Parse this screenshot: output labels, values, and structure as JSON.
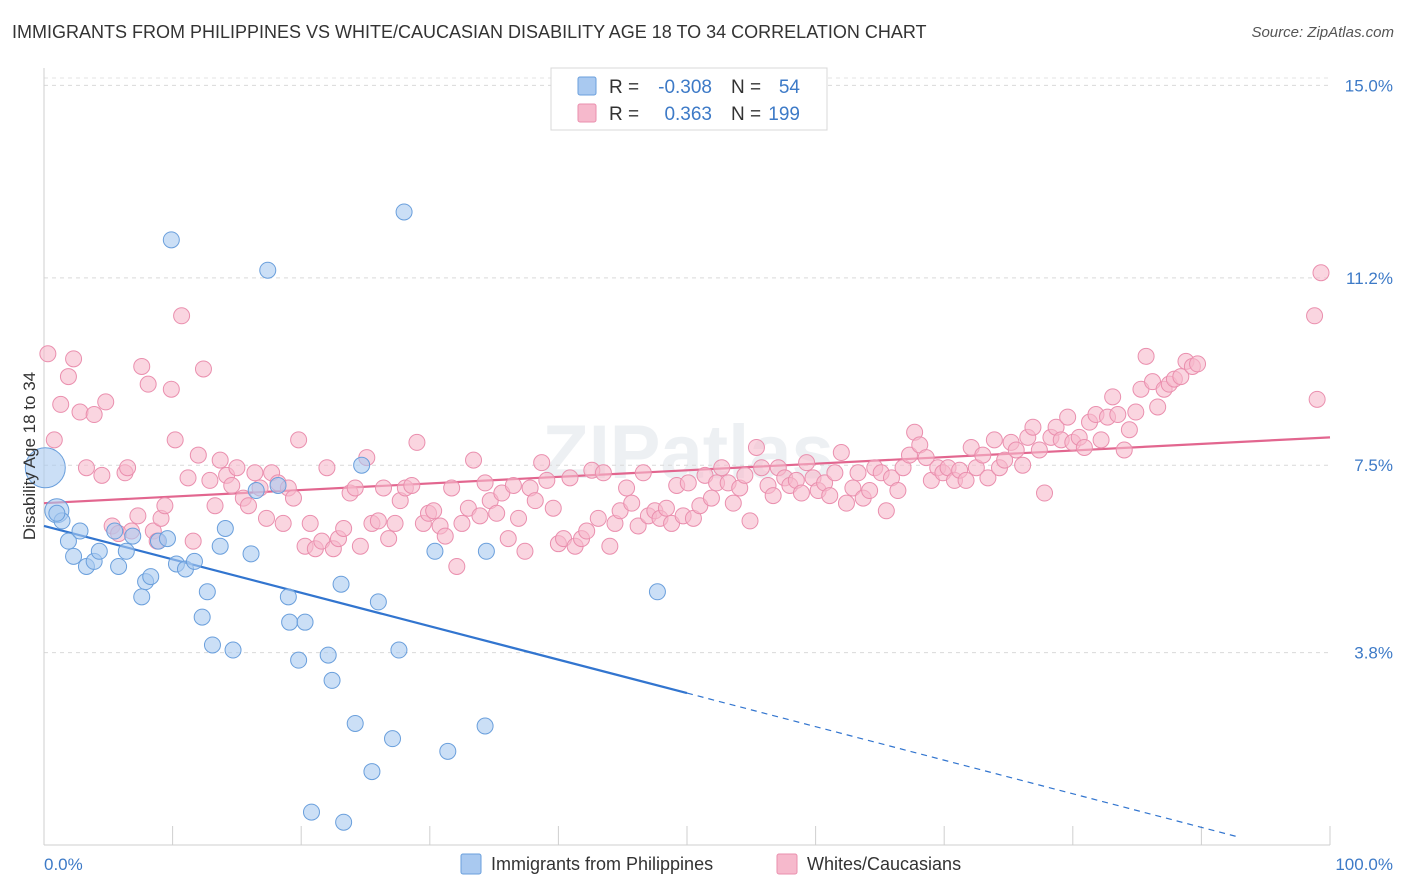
{
  "title": "IMMIGRANTS FROM PHILIPPINES VS WHITE/CAUCASIAN DISABILITY AGE 18 TO 34 CORRELATION CHART",
  "source": "Source: ZipAtlas.com",
  "watermark": "ZIPatlas",
  "legend": {
    "r_label": "R =",
    "n_label": "N =",
    "rows": [
      {
        "r": "-0.308",
        "n": "54"
      },
      {
        "r": "0.363",
        "n": "199"
      }
    ]
  },
  "colors": {
    "blue_fill": "#a9c9f0",
    "blue_stroke": "#6a9fdc",
    "blue_line": "#3275cf",
    "pink_fill": "#f6b9cc",
    "pink_stroke": "#ea8fae",
    "pink_line": "#e2668f",
    "tick_text": "#3d7ac7"
  },
  "chart_data": {
    "type": "scatter",
    "title": "IMMIGRANTS FROM PHILIPPINES VS WHITE/CAUCASIAN DISABILITY AGE 18 TO 34 CORRELATION CHART",
    "xlabel": "",
    "ylabel": "Disability Age 18 to 34",
    "xlim": [
      0,
      100
    ],
    "ylim": [
      0,
      15.6
    ],
    "x_ticks": [
      "0.0%",
      "100.0%"
    ],
    "y_ticks": [
      {
        "value": 3.8,
        "label": "3.8%"
      },
      {
        "value": 7.5,
        "label": "7.5%"
      },
      {
        "value": 11.2,
        "label": "11.2%"
      },
      {
        "value": 15.0,
        "label": "15.0%"
      }
    ],
    "grid": true,
    "legend_position": "top-center",
    "series": [
      {
        "name": "Immigrants from Philippines",
        "color": "#a9c9f0",
        "trend": {
          "x": [
            0,
            50,
            93
          ],
          "y": [
            6.3,
            3.0,
            0.15
          ],
          "solid_until": 50
        },
        "points": [
          [
            0.1,
            7.45
          ],
          [
            1.0,
            6.6
          ],
          [
            1.4,
            6.4
          ],
          [
            1.9,
            6.0
          ],
          [
            2.3,
            5.7
          ],
          [
            2.8,
            6.2
          ],
          [
            3.3,
            5.5
          ],
          [
            3.9,
            5.6
          ],
          [
            4.3,
            5.8
          ],
          [
            5.5,
            6.2
          ],
          [
            5.8,
            5.5
          ],
          [
            6.4,
            5.8
          ],
          [
            6.9,
            6.1
          ],
          [
            7.6,
            4.9
          ],
          [
            7.9,
            5.2
          ],
          [
            8.3,
            5.3
          ],
          [
            8.9,
            6.0
          ],
          [
            9.6,
            6.05
          ],
          [
            9.9,
            11.95
          ],
          [
            10.3,
            5.55
          ],
          [
            11.0,
            5.45
          ],
          [
            11.7,
            5.6
          ],
          [
            12.3,
            4.5
          ],
          [
            12.7,
            5.0
          ],
          [
            13.1,
            3.95
          ],
          [
            13.7,
            5.9
          ],
          [
            14.1,
            6.25
          ],
          [
            14.7,
            3.85
          ],
          [
            16.1,
            5.75
          ],
          [
            16.5,
            7.0
          ],
          [
            17.4,
            11.35
          ],
          [
            18.2,
            7.1
          ],
          [
            19.0,
            4.9
          ],
          [
            19.1,
            4.4
          ],
          [
            19.8,
            3.65
          ],
          [
            20.3,
            4.4
          ],
          [
            20.8,
            0.65
          ],
          [
            22.1,
            3.75
          ],
          [
            22.4,
            3.25
          ],
          [
            23.1,
            5.15
          ],
          [
            23.3,
            0.45
          ],
          [
            24.2,
            2.4
          ],
          [
            24.7,
            7.5
          ],
          [
            25.5,
            1.45
          ],
          [
            26.0,
            4.8
          ],
          [
            27.1,
            2.1
          ],
          [
            27.6,
            3.85
          ],
          [
            28.0,
            12.5
          ],
          [
            30.4,
            5.8
          ],
          [
            31.4,
            1.85
          ],
          [
            34.3,
            2.35
          ],
          [
            34.4,
            5.8
          ],
          [
            47.7,
            5.0
          ],
          [
            1.0,
            6.55
          ]
        ]
      },
      {
        "name": "Whites/Caucasians",
        "color": "#f6b9cc",
        "trend": {
          "x": [
            0,
            100
          ],
          "y": [
            6.75,
            8.05
          ]
        },
        "points": [
          [
            0.3,
            9.7
          ],
          [
            0.8,
            8.0
          ],
          [
            1.3,
            8.7
          ],
          [
            1.9,
            9.25
          ],
          [
            2.3,
            9.6
          ],
          [
            2.8,
            8.55
          ],
          [
            3.3,
            7.45
          ],
          [
            3.9,
            8.5
          ],
          [
            4.5,
            7.3
          ],
          [
            4.8,
            8.75
          ],
          [
            5.3,
            6.3
          ],
          [
            5.8,
            6.15
          ],
          [
            6.3,
            7.35
          ],
          [
            6.5,
            7.45
          ],
          [
            6.8,
            6.2
          ],
          [
            7.3,
            6.5
          ],
          [
            7.6,
            9.45
          ],
          [
            8.1,
            9.1
          ],
          [
            8.5,
            6.2
          ],
          [
            8.8,
            6.0
          ],
          [
            9.1,
            6.45
          ],
          [
            9.4,
            6.7
          ],
          [
            9.9,
            9.0
          ],
          [
            10.2,
            8.0
          ],
          [
            10.7,
            10.45
          ],
          [
            11.2,
            7.25
          ],
          [
            11.6,
            6.0
          ],
          [
            12.0,
            7.7
          ],
          [
            12.4,
            9.4
          ],
          [
            12.9,
            7.2
          ],
          [
            13.3,
            6.7
          ],
          [
            13.7,
            7.6
          ],
          [
            14.2,
            7.3
          ],
          [
            14.6,
            7.1
          ],
          [
            15.0,
            7.45
          ],
          [
            15.5,
            6.85
          ],
          [
            15.9,
            6.7
          ],
          [
            16.4,
            7.35
          ],
          [
            16.8,
            7.05
          ],
          [
            17.3,
            6.45
          ],
          [
            17.7,
            7.35
          ],
          [
            18.2,
            7.15
          ],
          [
            18.6,
            6.35
          ],
          [
            19.0,
            7.05
          ],
          [
            19.4,
            6.85
          ],
          [
            19.8,
            8.0
          ],
          [
            20.3,
            5.9
          ],
          [
            20.7,
            6.35
          ],
          [
            21.1,
            5.85
          ],
          [
            21.6,
            6.0
          ],
          [
            22.0,
            7.45
          ],
          [
            22.5,
            5.85
          ],
          [
            22.9,
            6.05
          ],
          [
            23.3,
            6.25
          ],
          [
            23.8,
            6.95
          ],
          [
            24.2,
            7.05
          ],
          [
            24.6,
            5.9
          ],
          [
            25.1,
            7.65
          ],
          [
            25.5,
            6.35
          ],
          [
            26.0,
            6.4
          ],
          [
            26.4,
            7.05
          ],
          [
            26.8,
            6.05
          ],
          [
            27.3,
            6.35
          ],
          [
            27.7,
            6.8
          ],
          [
            28.1,
            7.05
          ],
          [
            28.6,
            7.1
          ],
          [
            29.0,
            7.95
          ],
          [
            29.5,
            6.35
          ],
          [
            29.9,
            6.55
          ],
          [
            30.3,
            6.6
          ],
          [
            30.8,
            6.3
          ],
          [
            31.2,
            6.1
          ],
          [
            31.7,
            7.05
          ],
          [
            32.1,
            5.5
          ],
          [
            32.5,
            6.35
          ],
          [
            33.0,
            6.65
          ],
          [
            33.4,
            7.6
          ],
          [
            33.9,
            6.5
          ],
          [
            34.3,
            7.15
          ],
          [
            34.7,
            6.8
          ],
          [
            35.2,
            6.55
          ],
          [
            35.6,
            6.95
          ],
          [
            36.1,
            6.05
          ],
          [
            36.5,
            7.1
          ],
          [
            36.9,
            6.45
          ],
          [
            37.4,
            5.8
          ],
          [
            37.8,
            7.05
          ],
          [
            38.2,
            6.8
          ],
          [
            38.7,
            7.55
          ],
          [
            39.1,
            7.2
          ],
          [
            39.6,
            6.65
          ],
          [
            40.0,
            5.95
          ],
          [
            40.4,
            6.05
          ],
          [
            40.9,
            7.25
          ],
          [
            41.3,
            5.9
          ],
          [
            41.8,
            6.05
          ],
          [
            42.2,
            6.2
          ],
          [
            42.6,
            7.4
          ],
          [
            43.1,
            6.45
          ],
          [
            43.5,
            7.35
          ],
          [
            44.0,
            5.9
          ],
          [
            44.4,
            6.35
          ],
          [
            44.8,
            6.6
          ],
          [
            45.3,
            7.05
          ],
          [
            45.7,
            6.75
          ],
          [
            46.2,
            6.3
          ],
          [
            46.6,
            7.35
          ],
          [
            47.0,
            6.5
          ],
          [
            47.5,
            6.6
          ],
          [
            47.9,
            6.45
          ],
          [
            48.4,
            6.65
          ],
          [
            48.8,
            6.35
          ],
          [
            49.2,
            7.1
          ],
          [
            49.7,
            6.5
          ],
          [
            50.1,
            7.15
          ],
          [
            50.5,
            6.45
          ],
          [
            51.0,
            6.7
          ],
          [
            51.4,
            7.3
          ],
          [
            51.9,
            6.85
          ],
          [
            52.3,
            7.15
          ],
          [
            52.7,
            7.45
          ],
          [
            53.2,
            7.15
          ],
          [
            53.6,
            6.75
          ],
          [
            54.1,
            7.05
          ],
          [
            54.5,
            7.3
          ],
          [
            54.9,
            6.4
          ],
          [
            55.4,
            7.85
          ],
          [
            55.8,
            7.45
          ],
          [
            56.3,
            7.1
          ],
          [
            56.7,
            6.9
          ],
          [
            57.1,
            7.45
          ],
          [
            57.6,
            7.25
          ],
          [
            58.0,
            7.1
          ],
          [
            58.5,
            7.2
          ],
          [
            58.9,
            6.95
          ],
          [
            59.3,
            7.55
          ],
          [
            59.8,
            7.25
          ],
          [
            60.2,
            7.0
          ],
          [
            60.7,
            7.15
          ],
          [
            61.1,
            6.9
          ],
          [
            61.5,
            7.35
          ],
          [
            62.0,
            7.75
          ],
          [
            62.4,
            6.75
          ],
          [
            62.9,
            7.05
          ],
          [
            63.3,
            7.35
          ],
          [
            63.7,
            6.85
          ],
          [
            64.2,
            7.0
          ],
          [
            64.6,
            7.45
          ],
          [
            65.1,
            7.35
          ],
          [
            65.5,
            6.6
          ],
          [
            65.9,
            7.25
          ],
          [
            66.4,
            7.0
          ],
          [
            66.8,
            7.45
          ],
          [
            67.3,
            7.7
          ],
          [
            67.7,
            8.15
          ],
          [
            68.1,
            7.9
          ],
          [
            68.6,
            7.65
          ],
          [
            69.0,
            7.2
          ],
          [
            69.5,
            7.45
          ],
          [
            69.9,
            7.35
          ],
          [
            70.3,
            7.45
          ],
          [
            70.8,
            7.2
          ],
          [
            71.2,
            7.4
          ],
          [
            71.7,
            7.2
          ],
          [
            72.1,
            7.85
          ],
          [
            72.5,
            7.45
          ],
          [
            73.0,
            7.7
          ],
          [
            73.4,
            7.25
          ],
          [
            73.9,
            8.0
          ],
          [
            74.3,
            7.45
          ],
          [
            74.7,
            7.6
          ],
          [
            75.2,
            7.95
          ],
          [
            75.6,
            7.8
          ],
          [
            76.1,
            7.5
          ],
          [
            76.5,
            8.05
          ],
          [
            76.9,
            8.25
          ],
          [
            77.4,
            7.8
          ],
          [
            77.8,
            6.95
          ],
          [
            78.3,
            8.05
          ],
          [
            78.7,
            8.25
          ],
          [
            79.1,
            8.0
          ],
          [
            79.6,
            8.45
          ],
          [
            80.0,
            7.95
          ],
          [
            80.5,
            8.05
          ],
          [
            80.9,
            7.85
          ],
          [
            81.3,
            8.35
          ],
          [
            81.8,
            8.5
          ],
          [
            82.2,
            8.0
          ],
          [
            82.7,
            8.45
          ],
          [
            83.1,
            8.85
          ],
          [
            83.5,
            8.5
          ],
          [
            84.0,
            7.8
          ],
          [
            84.4,
            8.2
          ],
          [
            84.9,
            8.55
          ],
          [
            85.3,
            9.0
          ],
          [
            85.7,
            9.65
          ],
          [
            86.2,
            9.15
          ],
          [
            86.6,
            8.65
          ],
          [
            87.1,
            9.0
          ],
          [
            87.5,
            9.1
          ],
          [
            87.9,
            9.2
          ],
          [
            88.4,
            9.25
          ],
          [
            88.8,
            9.55
          ],
          [
            89.3,
            9.45
          ],
          [
            89.7,
            9.5
          ],
          [
            99.0,
            8.8
          ],
          [
            98.8,
            10.45
          ],
          [
            99.3,
            11.3
          ]
        ]
      }
    ]
  },
  "bottom_legend": [
    "Immigrants from Philippines",
    "Whites/Caucasians"
  ]
}
